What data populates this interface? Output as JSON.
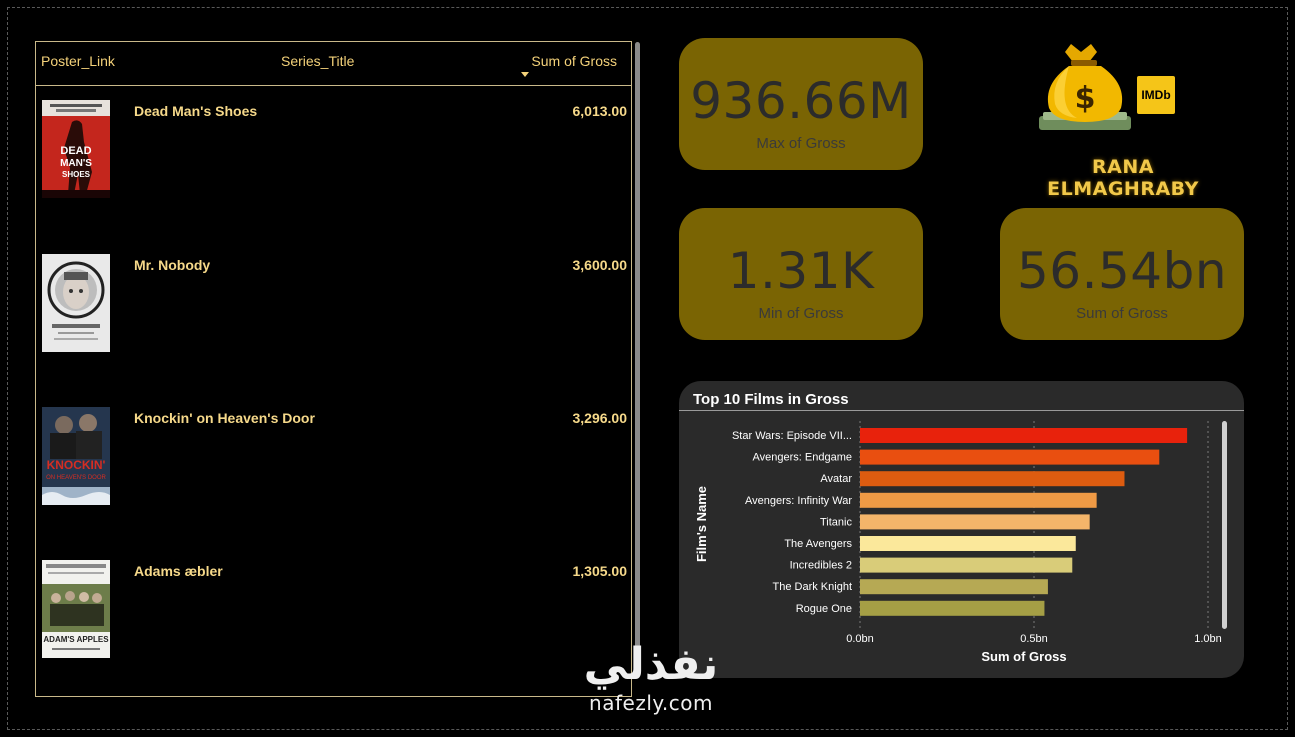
{
  "table": {
    "headers": {
      "poster": "Poster_Link",
      "title": "Series_Title",
      "gross": "Sum of Gross"
    },
    "rows": [
      {
        "title": "Dead Man's Shoes",
        "gross": "6,013.00",
        "poster_text": "DEAD MAN'S SHOES"
      },
      {
        "title": "Mr. Nobody",
        "gross": "3,600.00",
        "poster_text": "MR. NOBODY"
      },
      {
        "title": "Knockin' on Heaven's Door",
        "gross": "3,296.00",
        "poster_text": "KNOCKIN' ON HEAVEN'S DOOR"
      },
      {
        "title": "Adams æbler",
        "gross": "1,305.00",
        "poster_text": "ADAM'S APPLES"
      }
    ]
  },
  "kpis": {
    "max": {
      "value": "936.66M",
      "label": "Max of Gross"
    },
    "min": {
      "value": "1.31K",
      "label": "Min of Gross"
    },
    "sum": {
      "value": "56.54bn",
      "label": "Sum of Gross"
    }
  },
  "logo": {
    "badge": "IMDb",
    "name": "RANA ELMAGHRABY"
  },
  "watermark": {
    "arabic": "نفذلي",
    "latin": "nafezly.com"
  },
  "colors": {
    "accent": "#7a6403",
    "header_text": "#f4d27a",
    "row_text": "#f6d98a"
  },
  "chart_data": {
    "type": "bar",
    "orientation": "horizontal",
    "title": "Top 10 Films in Gross",
    "xlabel": "Sum of Gross",
    "ylabel": "Film's Name",
    "categories": [
      "Star Wars: Episode VII...",
      "Avengers: Endgame",
      "Avatar",
      "Avengers: Infinity War",
      "Titanic",
      "The Avengers",
      "Incredibles 2",
      "The Dark Knight",
      "Rogue One"
    ],
    "values": [
      0.94,
      0.86,
      0.76,
      0.68,
      0.66,
      0.62,
      0.61,
      0.54,
      0.53
    ],
    "colors": [
      "#e8220c",
      "#e94f10",
      "#dd5c10",
      "#ef9a45",
      "#f4b56a",
      "#fbe89b",
      "#d9cc79",
      "#b6a954",
      "#a59f45"
    ],
    "xticks": [
      "0.0bn",
      "0.5bn",
      "1.0bn"
    ],
    "xtick_values": [
      0,
      0.5,
      1.0
    ],
    "xlim": [
      0,
      1.0
    ],
    "grid": "vertical dotted"
  }
}
